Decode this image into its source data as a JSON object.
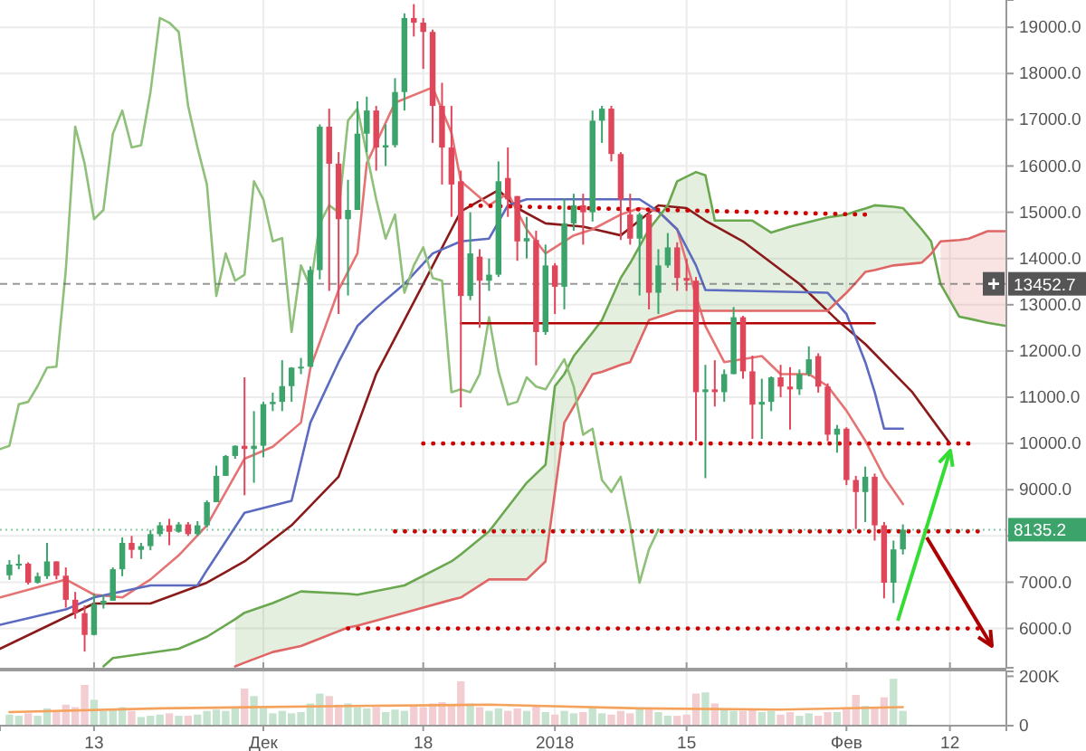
{
  "chart_data": [
    {
      "type": "candlestick",
      "x": [
        "2017-11-04",
        "2017-11-05",
        "2017-11-06",
        "2017-11-07",
        "2017-11-08",
        "2017-11-09",
        "2017-11-10",
        "2017-11-11",
        "2017-11-12",
        "2017-11-13",
        "2017-11-14",
        "2017-11-15",
        "2017-11-16",
        "2017-11-17",
        "2017-11-18",
        "2017-11-19",
        "2017-11-20",
        "2017-11-21",
        "2017-11-22",
        "2017-11-23",
        "2017-11-24",
        "2017-11-25",
        "2017-11-26",
        "2017-11-27",
        "2017-11-28",
        "2017-11-29",
        "2017-11-30",
        "2017-12-01",
        "2017-12-02",
        "2017-12-03",
        "2017-12-04",
        "2017-12-05",
        "2017-12-06",
        "2017-12-07",
        "2017-12-08",
        "2017-12-09",
        "2017-12-10",
        "2017-12-11",
        "2017-12-12",
        "2017-12-13",
        "2017-12-14",
        "2017-12-15",
        "2017-12-16",
        "2017-12-17",
        "2017-12-18",
        "2017-12-19",
        "2017-12-20",
        "2017-12-21",
        "2017-12-22",
        "2017-12-23",
        "2017-12-24",
        "2017-12-25",
        "2017-12-26",
        "2017-12-27",
        "2017-12-28",
        "2017-12-29",
        "2017-12-30",
        "2017-12-31",
        "2018-01-01",
        "2018-01-02",
        "2018-01-03",
        "2018-01-04",
        "2018-01-05",
        "2018-01-06",
        "2018-01-07",
        "2018-01-08",
        "2018-01-09",
        "2018-01-10",
        "2018-01-11",
        "2018-01-12",
        "2018-01-13",
        "2018-01-14",
        "2018-01-15",
        "2018-01-16",
        "2018-01-17",
        "2018-01-18",
        "2018-01-19",
        "2018-01-20",
        "2018-01-21",
        "2018-01-22",
        "2018-01-23",
        "2018-01-24",
        "2018-01-25",
        "2018-01-26",
        "2018-01-27",
        "2018-01-28",
        "2018-01-29",
        "2018-01-30",
        "2018-01-31",
        "2018-02-01",
        "2018-02-02",
        "2018-02-03",
        "2018-02-04",
        "2018-02-05",
        "2018-02-06",
        "2018-02-07"
      ],
      "ohlc": [
        [
          7150,
          7480,
          7050,
          7380
        ],
        [
          7380,
          7600,
          7280,
          7400
        ],
        [
          7400,
          7430,
          6950,
          6990
        ],
        [
          6990,
          7210,
          6970,
          7130
        ],
        [
          7130,
          7850,
          7070,
          7450
        ],
        [
          7450,
          7450,
          7060,
          7140
        ],
        [
          7140,
          7320,
          6450,
          6620
        ],
        [
          6620,
          6790,
          6210,
          6330
        ],
        [
          6330,
          6500,
          5500,
          5860
        ],
        [
          5860,
          6760,
          5850,
          6530
        ],
        [
          6530,
          6720,
          6430,
          6600
        ],
        [
          6600,
          7320,
          6600,
          7280
        ],
        [
          7280,
          7970,
          7130,
          7850
        ],
        [
          7850,
          8000,
          7520,
          7700
        ],
        [
          7700,
          7850,
          7500,
          7780
        ],
        [
          7780,
          8130,
          7690,
          8040
        ],
        [
          8040,
          8300,
          7990,
          8230
        ],
        [
          8230,
          8370,
          7800,
          8090
        ],
        [
          8090,
          8300,
          8070,
          8250
        ],
        [
          8250,
          8300,
          8000,
          8040
        ],
        [
          8040,
          8320,
          8000,
          8230
        ],
        [
          8230,
          8770,
          8180,
          8730
        ],
        [
          8730,
          9520,
          8730,
          9300
        ],
        [
          9300,
          9750,
          9300,
          9730
        ],
        [
          9730,
          9960,
          9670,
          9950
        ],
        [
          9950,
          11430,
          8880,
          9880
        ],
        [
          9880,
          10700,
          9150,
          9950
        ],
        [
          9950,
          10900,
          9700,
          10850
        ],
        [
          10850,
          11100,
          10700,
          10900
        ],
        [
          10900,
          11800,
          10700,
          11240
        ],
        [
          11240,
          11650,
          10900,
          11640
        ],
        [
          11640,
          11850,
          11500,
          11660
        ],
        [
          11660,
          13830,
          11650,
          13750
        ],
        [
          13750,
          16900,
          13550,
          16850
        ],
        [
          16850,
          17240,
          13300,
          16050
        ],
        [
          16050,
          16300,
          12800,
          14850
        ],
        [
          14850,
          15700,
          13200,
          15050
        ],
        [
          15050,
          17400,
          15050,
          16700
        ],
        [
          16700,
          17500,
          16300,
          17200
        ],
        [
          17200,
          17300,
          15900,
          16400
        ],
        [
          16400,
          16900,
          16000,
          16450
        ],
        [
          16450,
          17900,
          16400,
          17600
        ],
        [
          17600,
          19300,
          17200,
          19200
        ],
        [
          19200,
          19500,
          18800,
          19100
        ],
        [
          19100,
          19200,
          18100,
          18900
        ],
        [
          18900,
          18950,
          16500,
          17300
        ],
        [
          17300,
          17800,
          15600,
          16400
        ],
        [
          16400,
          17300,
          14900,
          15600
        ],
        [
          15670,
          15900,
          10780,
          13190
        ],
        [
          13190,
          15000,
          13100,
          14110
        ],
        [
          14040,
          14200,
          12500,
          13520
        ],
        [
          13520,
          14000,
          13300,
          13650
        ],
        [
          13650,
          16100,
          13600,
          15670
        ],
        [
          15740,
          16400,
          14900,
          15280
        ],
        [
          15350,
          15350,
          13950,
          14370
        ],
        [
          14370,
          14900,
          14000,
          14440
        ],
        [
          14400,
          14600,
          11690,
          12410
        ],
        [
          12410,
          14300,
          12350,
          13850
        ],
        [
          13850,
          13900,
          12800,
          13390
        ],
        [
          13390,
          15300,
          12900,
          14760
        ],
        [
          14760,
          15400,
          14600,
          15150
        ],
        [
          15150,
          15400,
          14300,
          15000
        ],
        [
          15000,
          17200,
          14800,
          16980
        ],
        [
          16980,
          17300,
          16500,
          17240
        ],
        [
          17240,
          17300,
          16100,
          16260
        ],
        [
          16260,
          16300,
          14400,
          15280
        ],
        [
          14950,
          15400,
          14300,
          14430
        ],
        [
          14430,
          14990,
          13200,
          14950
        ],
        [
          14950,
          15000,
          12900,
          13260
        ],
        [
          13260,
          14200,
          12800,
          13850
        ],
        [
          13850,
          14550,
          13800,
          14240
        ],
        [
          14240,
          14350,
          13300,
          13580
        ],
        [
          13580,
          14000,
          13300,
          13520
        ],
        [
          13520,
          13600,
          10060,
          11110
        ],
        [
          11110,
          11700,
          9250,
          11170
        ],
        [
          11170,
          11800,
          10800,
          11110
        ],
        [
          11110,
          11600,
          10900,
          11500
        ],
        [
          11500,
          12950,
          11500,
          12730
        ],
        [
          12730,
          12760,
          11400,
          11560
        ],
        [
          11560,
          11900,
          10100,
          10840
        ],
        [
          10840,
          11400,
          10100,
          10900
        ],
        [
          10900,
          11450,
          10700,
          11430
        ],
        [
          11430,
          11700,
          11000,
          11230
        ],
        [
          11230,
          11650,
          10300,
          11170
        ],
        [
          11170,
          11600,
          11050,
          11500
        ],
        [
          11500,
          12100,
          11450,
          11820
        ],
        [
          11890,
          11950,
          11100,
          11230
        ],
        [
          11230,
          11300,
          10050,
          10190
        ],
        [
          10190,
          10400,
          9800,
          10320
        ],
        [
          10320,
          10350,
          9100,
          9210
        ],
        [
          9210,
          9300,
          8150,
          8950
        ],
        [
          8950,
          9500,
          8300,
          9280
        ],
        [
          9280,
          9350,
          7900,
          8230
        ],
        [
          8230,
          8300,
          6650,
          6990
        ],
        [
          6990,
          7900,
          6550,
          7710
        ],
        [
          7710,
          8250,
          7600,
          8135.2
        ]
      ],
      "colors": [
        "#3ca36b",
        "#3ca36b",
        "#e0465a",
        "#3ca36b",
        "#3ca36b",
        "#e0465a",
        "#e0465a",
        "#e0465a",
        "#e0465a",
        "#3ca36b",
        "#3ca36b",
        "#3ca36b",
        "#3ca36b",
        "#e0465a",
        "#3ca36b",
        "#3ca36b",
        "#3ca36b",
        "#e0465a",
        "#3ca36b",
        "#e0465a",
        "#3ca36b",
        "#3ca36b",
        "#3ca36b",
        "#3ca36b",
        "#3ca36b",
        "#e0465a",
        "#3ca36b",
        "#3ca36b",
        "#3ca36b",
        "#3ca36b",
        "#3ca36b",
        "#3ca36b",
        "#3ca36b",
        "#3ca36b",
        "#e0465a",
        "#e0465a",
        "#3ca36b",
        "#3ca36b",
        "#3ca36b",
        "#e0465a",
        "#3ca36b",
        "#3ca36b",
        "#3ca36b",
        "#e0465a",
        "#e0465a",
        "#e0465a",
        "#e0465a",
        "#e0465a",
        "#e0465a",
        "#3ca36b",
        "#e0465a",
        "#3ca36b",
        "#3ca36b",
        "#e0465a",
        "#e0465a",
        "#3ca36b",
        "#e0465a",
        "#3ca36b",
        "#e0465a",
        "#3ca36b",
        "#3ca36b",
        "#e0465a",
        "#3ca36b",
        "#3ca36b",
        "#e0465a",
        "#e0465a",
        "#e0465a",
        "#3ca36b",
        "#e0465a",
        "#3ca36b",
        "#3ca36b",
        "#e0465a",
        "#e0465a",
        "#e0465a",
        "#3ca36b",
        "#e0465a",
        "#3ca36b",
        "#3ca36b",
        "#e0465a",
        "#e0465a",
        "#3ca36b",
        "#3ca36b",
        "#e0465a",
        "#e0465a",
        "#3ca36b",
        "#3ca36b",
        "#e0465a",
        "#e0465a",
        "#3ca36b",
        "#e0465a",
        "#e0465a",
        "#3ca36b",
        "#e0465a",
        "#e0465a",
        "#3ca36b",
        "#3ca36b"
      ],
      "xlim": [
        "2017-11-03",
        "2018-02-18"
      ],
      "ylim": [
        5150,
        19590
      ],
      "xticks": [
        {
          "value": "2017-11-13",
          "label": null
        },
        {
          "value": "2017-12-01",
          "label": null
        },
        {
          "value": "2017-12-18",
          "label": null
        },
        {
          "value": "2018-01-01",
          "label": null
        },
        {
          "value": "2018-01-15",
          "label": null
        },
        {
          "value": "2018-02-01",
          "label": null
        },
        {
          "value": "2018-02-12",
          "label": null
        }
      ],
      "yticks": [
        {
          "value": 6000,
          "label": "6000.0"
        },
        {
          "value": 7000,
          "label": "7000.0"
        },
        {
          "value": 8000,
          "label": null
        },
        {
          "value": 9000,
          "label": "9000.0"
        },
        {
          "value": 10000,
          "label": "10000.0"
        },
        {
          "value": 11000,
          "label": "11000.0"
        },
        {
          "value": 12000,
          "label": "12000.0"
        },
        {
          "value": 13000,
          "label": "13000.0"
        },
        {
          "value": 14000,
          "label": "14000.0"
        },
        {
          "value": 15000,
          "label": "15000.0"
        },
        {
          "value": 16000,
          "label": "16000.0"
        },
        {
          "value": 17000,
          "label": "17000.0"
        },
        {
          "value": 18000,
          "label": "18000.0"
        },
        {
          "value": 19000,
          "label": "19000.0"
        }
      ],
      "grid": true,
      "tick_labels": "y",
      "ref_lines": [
        {
          "axis": "y",
          "value": 13452.7,
          "label": "13452.7",
          "color": "#555555",
          "line_style": "dashed"
        },
        {
          "axis": "y",
          "value": 8135.2,
          "label": "8135.2",
          "color": "#3ca36b",
          "line_style": "dotted"
        }
      ],
      "series": [
        {
          "type": "line",
          "color": "#8b1a1a",
          "line_style": "solid",
          "x": [
            "2017-11-03",
            "2017-11-13",
            "2017-11-19",
            "2017-11-25",
            "2017-11-29",
            "2017-12-04",
            "2017-12-09",
            "2017-12-13",
            "2017-12-18",
            "2017-12-22",
            "2017-12-26",
            "2017-12-28",
            "2017-12-31",
            "2018-01-04",
            "2018-01-08",
            "2018-01-12",
            "2018-01-15",
            "2018-01-17",
            "2018-01-21",
            "2018-01-27",
            "2018-01-31",
            "2018-02-03",
            "2018-02-08",
            "2018-02-12"
          ],
          "values": [
            5560,
            6540,
            6540,
            6990,
            7450,
            8230,
            9280,
            11500,
            13450,
            15020,
            15480,
            15090,
            14760,
            14690,
            14500,
            15150,
            15090,
            14820,
            14370,
            13450,
            12670,
            12150,
            11110,
            10000
          ]
        },
        {
          "type": "line",
          "color": "#e57373",
          "line_style": "solid",
          "x": [
            "2017-11-03",
            "2017-11-10",
            "2017-11-13",
            "2017-11-16",
            "2017-11-19",
            "2017-11-22",
            "2017-11-25",
            "2017-11-29",
            "2017-12-02",
            "2017-12-05",
            "2017-12-06",
            "2017-12-09",
            "2017-12-11",
            "2017-12-12",
            "2017-12-15",
            "2017-12-19",
            "2017-12-21",
            "2017-12-22",
            "2017-12-25",
            "2017-12-27",
            "2017-12-29",
            "2017-12-31",
            "2018-01-03",
            "2018-01-05",
            "2018-01-08",
            "2018-01-10",
            "2018-01-12",
            "2018-01-14",
            "2018-01-16",
            "2018-01-17",
            "2018-01-19",
            "2018-01-23",
            "2018-01-25",
            "2018-01-28",
            "2018-01-30",
            "2018-02-01",
            "2018-02-03",
            "2018-02-05",
            "2018-02-07"
          ],
          "values": [
            6670,
            7060,
            6730,
            6670,
            7060,
            7580,
            8230,
            9670,
            9930,
            10450,
            11630,
            13320,
            14110,
            16060,
            17370,
            17700,
            16720,
            15670,
            15150,
            15410,
            14630,
            14110,
            14500,
            14630,
            14950,
            15090,
            15020,
            14630,
            13190,
            12540,
            11760,
            11890,
            11500,
            11500,
            11240,
            10710,
            10060,
            9280,
            8690
          ]
        },
        {
          "type": "line",
          "color": "#5c6bc0",
          "line_style": "solid",
          "x": [
            "2017-11-03",
            "2017-11-10",
            "2017-11-13",
            "2017-11-19",
            "2017-11-24",
            "2017-11-25",
            "2017-11-29",
            "2017-12-04",
            "2017-12-06",
            "2017-12-09",
            "2017-12-11",
            "2017-12-13",
            "2017-12-16",
            "2017-12-19",
            "2017-12-22",
            "2017-12-25",
            "2017-12-27",
            "2017-12-29",
            "2018-01-10",
            "2018-01-12",
            "2018-01-14",
            "2018-01-16",
            "2018-01-17",
            "2018-01-30",
            "2018-02-01",
            "2018-02-03",
            "2018-02-04",
            "2018-02-05",
            "2018-02-07"
          ],
          "values": [
            6080,
            6410,
            6670,
            6930,
            6930,
            7260,
            8500,
            8760,
            10450,
            11760,
            12540,
            12930,
            13450,
            14110,
            14370,
            14430,
            15150,
            15280,
            15280,
            15020,
            14630,
            13850,
            13320,
            13260,
            12800,
            11760,
            11110,
            10320,
            10320
          ]
        },
        {
          "type": "line",
          "color": "#6aa84f",
          "line_style": "solid",
          "x": [
            "2017-11-14",
            "2017-11-15",
            "2017-11-22",
            "2017-11-25",
            "2017-11-28",
            "2017-11-29",
            "2017-12-02",
            "2017-12-05",
            "2017-12-10",
            "2017-12-11",
            "2017-12-16",
            "2017-12-21",
            "2017-12-22",
            "2017-12-25",
            "2017-12-29",
            "2017-12-31",
            "2018-01-01",
            "2018-01-02",
            "2018-01-03",
            "2018-01-05",
            "2018-01-06",
            "2018-01-08",
            "2018-01-09",
            "2018-01-11",
            "2018-01-13",
            "2018-01-14",
            "2018-01-16",
            "2018-01-17",
            "2018-01-18",
            "2018-01-22",
            "2018-01-24",
            "2018-01-26",
            "2018-01-30",
            "2018-02-01",
            "2018-02-02",
            "2018-02-03",
            "2018-02-04",
            "2018-02-06",
            "2018-02-07",
            "2018-02-09",
            "2018-02-10",
            "2018-02-11",
            "2018-02-13",
            "2018-02-14",
            "2018-02-16",
            "2018-02-18"
          ],
          "values": [
            5180,
            5360,
            5560,
            5820,
            6200,
            6340,
            6550,
            6800,
            6750,
            6730,
            6930,
            7450,
            7600,
            8100,
            9150,
            9540,
            11240,
            11500,
            11890,
            12400,
            12670,
            13580,
            13900,
            14630,
            15150,
            15670,
            15870,
            15800,
            14820,
            14820,
            14560,
            14690,
            14890,
            14950,
            15020,
            15080,
            15150,
            15120,
            15090,
            14630,
            14370,
            13450,
            12740,
            12700,
            12610,
            12540
          ],
          "upper": [
            null,
            null,
            null,
            null,
            6200,
            6340,
            6550,
            6800,
            6750,
            6730,
            6930,
            7450,
            7600,
            8100,
            9150,
            9540,
            11240,
            11500,
            11890,
            12400,
            12670,
            13580,
            13900,
            14630,
            15150,
            15670,
            15870,
            15800,
            14820,
            14820,
            14560,
            14690,
            14890,
            14950,
            15020,
            15080,
            15150,
            15120,
            15090,
            14630,
            14370,
            null,
            null,
            null,
            null,
            null
          ],
          "lower": [
            null,
            null,
            null,
            null,
            5180,
            5260,
            5490,
            5620,
            6020,
            6060,
            6340,
            6620,
            6670,
            7060,
            7060,
            7450,
            8950,
            10450,
            10800,
            11500,
            11550,
            11700,
            11760,
            12670,
            12800,
            12870,
            12870,
            12870,
            12870,
            12870,
            12870,
            12870,
            12870,
            13260,
            13480,
            13710,
            13750,
            13850,
            13870,
            13910,
            14100,
            null,
            null,
            null,
            null,
            null
          ]
        },
        {
          "type": "line",
          "color": "#e06666",
          "line_style": "solid",
          "x": [
            "2017-11-28",
            "2017-11-29",
            "2017-12-02",
            "2017-12-05",
            "2017-12-10",
            "2017-12-11",
            "2017-12-16",
            "2017-12-21",
            "2017-12-22",
            "2017-12-25",
            "2017-12-29",
            "2017-12-31",
            "2018-01-01",
            "2018-01-02",
            "2018-01-03",
            "2018-01-05",
            "2018-01-06",
            "2018-01-08",
            "2018-01-09",
            "2018-01-11",
            "2018-01-13",
            "2018-01-14",
            "2018-01-16",
            "2018-01-17",
            "2018-01-18",
            "2018-01-22",
            "2018-01-24",
            "2018-01-26",
            "2018-01-30",
            "2018-02-01",
            "2018-02-02",
            "2018-02-03",
            "2018-02-04",
            "2018-02-06",
            "2018-02-07",
            "2018-02-09",
            "2018-02-10",
            "2018-02-11",
            "2018-02-13",
            "2018-02-14",
            "2018-02-16",
            "2018-02-18"
          ],
          "values": [
            5180,
            5260,
            5490,
            5620,
            6020,
            6060,
            6340,
            6620,
            6670,
            7060,
            7060,
            7450,
            8950,
            10450,
            10800,
            11500,
            11550,
            11700,
            11760,
            12670,
            12800,
            12870,
            12870,
            12870,
            12870,
            12870,
            12870,
            12870,
            12870,
            13260,
            13480,
            13710,
            13750,
            13850,
            13870,
            13910,
            14100,
            14370,
            14400,
            14430,
            14590,
            14590
          ],
          "upper": [
            null,
            null,
            null,
            null,
            null,
            null,
            null,
            null,
            null,
            null,
            null,
            null,
            null,
            null,
            null,
            null,
            null,
            null,
            null,
            null,
            null,
            null,
            null,
            null,
            null,
            null,
            null,
            null,
            null,
            null,
            null,
            null,
            null,
            null,
            null,
            null,
            null,
            14370,
            14400,
            14430,
            14590,
            14590
          ],
          "lower": [
            null,
            null,
            null,
            null,
            null,
            null,
            null,
            null,
            null,
            null,
            null,
            null,
            null,
            null,
            null,
            null,
            null,
            null,
            null,
            null,
            null,
            null,
            null,
            null,
            null,
            null,
            null,
            null,
            null,
            null,
            null,
            null,
            null,
            null,
            null,
            null,
            null,
            13450,
            12740,
            12700,
            12610,
            12540
          ]
        },
        {
          "type": "line",
          "color": "#8fc07a",
          "line_style": "solid",
          "x": [
            "2017-11-03",
            "2017-11-04",
            "2017-11-05",
            "2017-11-06",
            "2017-11-07",
            "2017-11-08",
            "2017-11-09",
            "2017-11-10",
            "2017-11-11",
            "2017-11-12",
            "2017-11-13",
            "2017-11-14",
            "2017-11-15",
            "2017-11-16",
            "2017-11-17",
            "2017-11-18",
            "2017-11-19",
            "2017-11-20",
            "2017-11-21",
            "2017-11-22",
            "2017-11-23",
            "2017-11-24",
            "2017-11-25",
            "2017-11-26",
            "2017-11-27",
            "2017-11-28",
            "2017-11-29",
            "2017-11-30",
            "2017-12-01",
            "2017-12-02",
            "2017-12-03",
            "2017-12-04",
            "2017-12-05",
            "2017-12-06",
            "2017-12-07",
            "2017-12-08",
            "2017-12-09",
            "2017-12-10",
            "2017-12-11",
            "2017-12-12",
            "2017-12-13",
            "2017-12-14",
            "2017-12-15",
            "2017-12-16",
            "2017-12-17",
            "2017-12-18",
            "2017-12-19",
            "2017-12-20",
            "2017-12-21",
            "2017-12-22",
            "2017-12-23",
            "2017-12-24",
            "2017-12-25",
            "2017-12-26",
            "2017-12-27",
            "2017-12-28",
            "2017-12-29",
            "2017-12-30",
            "2017-12-31",
            "2018-01-01",
            "2018-01-02",
            "2018-01-03",
            "2018-01-04",
            "2018-01-05",
            "2018-01-06",
            "2018-01-07",
            "2018-01-08",
            "2018-01-09",
            "2018-01-10",
            "2018-01-11",
            "2018-01-12"
          ],
          "values": [
            9880,
            9950,
            10850,
            10900,
            11240,
            11640,
            11660,
            13750,
            16850,
            16050,
            14850,
            15050,
            16700,
            17200,
            16400,
            16450,
            17600,
            19200,
            19100,
            18900,
            17300,
            16400,
            15600,
            13190,
            14110,
            13520,
            13650,
            15670,
            15280,
            14370,
            14440,
            12410,
            13850,
            13390,
            14760,
            15150,
            15000,
            16980,
            17240,
            16260,
            15280,
            14430,
            14950,
            13260,
            13850,
            14240,
            13580,
            13520,
            11110,
            11170,
            11110,
            11500,
            12730,
            11560,
            10840,
            10900,
            11430,
            11230,
            11170,
            11500,
            11820,
            11230,
            10190,
            10320,
            9210,
            8950,
            9280,
            8230,
            6990,
            7710,
            8140
          ]
        },
        {
          "type": "line",
          "color": "#cc0000",
          "line_style": "dotted",
          "x": [
            "2017-12-22",
            "2018-02-03"
          ],
          "values": [
            15150,
            14950
          ]
        },
        {
          "type": "line",
          "color": "#b00000",
          "line_style": "solid",
          "x": [
            "2017-12-22",
            "2018-02-04"
          ],
          "values": [
            12600,
            12600
          ]
        },
        {
          "type": "line",
          "color": "#cc0000",
          "line_style": "dotted",
          "x": [
            "2017-12-18",
            "2018-02-14"
          ],
          "values": [
            10000,
            10000
          ]
        },
        {
          "type": "line",
          "color": "#cc0000",
          "line_style": "dotted",
          "x": [
            "2017-12-15",
            "2018-02-15"
          ],
          "values": [
            8100,
            8100
          ]
        },
        {
          "type": "line",
          "color": "#cc0000",
          "line_style": "dotted",
          "x": [
            "2017-12-10",
            "2018-02-15"
          ],
          "values": [
            6000,
            6000
          ]
        }
      ]
    },
    {
      "type": "bar",
      "x": [
        "2017-11-04",
        "2017-11-05",
        "2017-11-06",
        "2017-11-07",
        "2017-11-08",
        "2017-11-09",
        "2017-11-10",
        "2017-11-11",
        "2017-11-12",
        "2017-11-13",
        "2017-11-14",
        "2017-11-15",
        "2017-11-16",
        "2017-11-17",
        "2017-11-18",
        "2017-11-19",
        "2017-11-20",
        "2017-11-21",
        "2017-11-22",
        "2017-11-23",
        "2017-11-24",
        "2017-11-25",
        "2017-11-26",
        "2017-11-27",
        "2017-11-28",
        "2017-11-29",
        "2017-11-30",
        "2017-12-01",
        "2017-12-02",
        "2017-12-03",
        "2017-12-04",
        "2017-12-05",
        "2017-12-06",
        "2017-12-07",
        "2017-12-08",
        "2017-12-09",
        "2017-12-10",
        "2017-12-11",
        "2017-12-12",
        "2017-12-13",
        "2017-12-14",
        "2017-12-15",
        "2017-12-16",
        "2017-12-17",
        "2017-12-18",
        "2017-12-19",
        "2017-12-20",
        "2017-12-21",
        "2017-12-22",
        "2017-12-23",
        "2017-12-24",
        "2017-12-25",
        "2017-12-26",
        "2017-12-27",
        "2017-12-28",
        "2017-12-29",
        "2017-12-30",
        "2017-12-31",
        "2018-01-01",
        "2018-01-02",
        "2018-01-03",
        "2018-01-04",
        "2018-01-05",
        "2018-01-06",
        "2018-01-07",
        "2018-01-08",
        "2018-01-09",
        "2018-01-10",
        "2018-01-11",
        "2018-01-12",
        "2018-01-13",
        "2018-01-14",
        "2018-01-15",
        "2018-01-16",
        "2018-01-17",
        "2018-01-18",
        "2018-01-19",
        "2018-01-20",
        "2018-01-21",
        "2018-01-22",
        "2018-01-23",
        "2018-01-24",
        "2018-01-25",
        "2018-01-26",
        "2018-01-27",
        "2018-01-28",
        "2018-01-29",
        "2018-01-30",
        "2018-01-31",
        "2018-02-01",
        "2018-02-02",
        "2018-02-03",
        "2018-02-04",
        "2018-02-05",
        "2018-02-06",
        "2018-02-07"
      ],
      "values": [
        45000,
        40000,
        50000,
        40000,
        70000,
        55000,
        85000,
        75000,
        165000,
        105000,
        60000,
        70000,
        75000,
        60000,
        35000,
        40000,
        45000,
        50000,
        40000,
        40000,
        45000,
        60000,
        65000,
        60000,
        70000,
        150000,
        120000,
        70000,
        50000,
        60000,
        50000,
        55000,
        90000,
        130000,
        120000,
        85000,
        90000,
        75000,
        70000,
        75000,
        55000,
        65000,
        60000,
        80000,
        75000,
        90000,
        95000,
        85000,
        180000,
        90000,
        75000,
        60000,
        70000,
        60000,
        70000,
        60000,
        80000,
        55000,
        45000,
        60000,
        50000,
        55000,
        70000,
        50000,
        45000,
        60000,
        50000,
        70000,
        65000,
        55000,
        40000,
        40000,
        45000,
        130000,
        135000,
        90000,
        70000,
        60000,
        60000,
        65000,
        55000,
        60000,
        45000,
        55000,
        40000,
        50000,
        40000,
        55000,
        55000,
        75000,
        125000,
        80000,
        75000,
        115000,
        190000,
        60000
      ],
      "colors": [
        "#c5e3cf",
        "#c5e3cf",
        "#f2cdd2",
        "#c5e3cf",
        "#c5e3cf",
        "#f2cdd2",
        "#f2cdd2",
        "#f2cdd2",
        "#f2cdd2",
        "#c5e3cf",
        "#c5e3cf",
        "#c5e3cf",
        "#c5e3cf",
        "#f2cdd2",
        "#c5e3cf",
        "#c5e3cf",
        "#c5e3cf",
        "#f2cdd2",
        "#c5e3cf",
        "#f2cdd2",
        "#c5e3cf",
        "#c5e3cf",
        "#c5e3cf",
        "#c5e3cf",
        "#c5e3cf",
        "#f2cdd2",
        "#c5e3cf",
        "#c5e3cf",
        "#c5e3cf",
        "#c5e3cf",
        "#c5e3cf",
        "#c5e3cf",
        "#c5e3cf",
        "#c5e3cf",
        "#f2cdd2",
        "#f2cdd2",
        "#c5e3cf",
        "#c5e3cf",
        "#c5e3cf",
        "#f2cdd2",
        "#c5e3cf",
        "#c5e3cf",
        "#c5e3cf",
        "#f2cdd2",
        "#f2cdd2",
        "#f2cdd2",
        "#f2cdd2",
        "#f2cdd2",
        "#f2cdd2",
        "#c5e3cf",
        "#f2cdd2",
        "#c5e3cf",
        "#c5e3cf",
        "#f2cdd2",
        "#f2cdd2",
        "#c5e3cf",
        "#f2cdd2",
        "#c5e3cf",
        "#f2cdd2",
        "#c5e3cf",
        "#c5e3cf",
        "#f2cdd2",
        "#c5e3cf",
        "#c5e3cf",
        "#f2cdd2",
        "#f2cdd2",
        "#f2cdd2",
        "#c5e3cf",
        "#f2cdd2",
        "#c5e3cf",
        "#c5e3cf",
        "#f2cdd2",
        "#f2cdd2",
        "#f2cdd2",
        "#c5e3cf",
        "#f2cdd2",
        "#c5e3cf",
        "#c5e3cf",
        "#f2cdd2",
        "#f2cdd2",
        "#c5e3cf",
        "#c5e3cf",
        "#f2cdd2",
        "#f2cdd2",
        "#c5e3cf",
        "#c5e3cf",
        "#f2cdd2",
        "#f2cdd2",
        "#c5e3cf",
        "#f2cdd2",
        "#f2cdd2",
        "#c5e3cf",
        "#f2cdd2",
        "#f2cdd2",
        "#c5e3cf",
        "#c5e3cf"
      ],
      "xlim": [
        "2017-11-03",
        "2018-02-18"
      ],
      "ylim": [
        0,
        220000
      ],
      "xticks": [
        {
          "value": "2017-11-13",
          "label": "13"
        },
        {
          "value": "2017-12-01",
          "label": "Дек"
        },
        {
          "value": "2017-12-18",
          "label": "18"
        },
        {
          "value": "2018-01-01",
          "label": "2018"
        },
        {
          "value": "2018-01-15",
          "label": "15"
        },
        {
          "value": "2018-02-01",
          "label": "Фев"
        },
        {
          "value": "2018-02-12",
          "label": "12"
        }
      ],
      "yticks": [
        0,
        {
          "value": 200000,
          "label": "200K"
        }
      ],
      "grid": "x",
      "series": [
        {
          "type": "line",
          "color": "#f5a35c",
          "line_style": "solid",
          "x": [
            "2017-11-04",
            "2017-11-20",
            "2017-12-10",
            "2017-12-25",
            "2018-01-10",
            "2018-01-25",
            "2018-02-07"
          ],
          "values": [
            55000,
            70000,
            80000,
            85000,
            70000,
            65000,
            75000
          ]
        }
      ]
    }
  ]
}
